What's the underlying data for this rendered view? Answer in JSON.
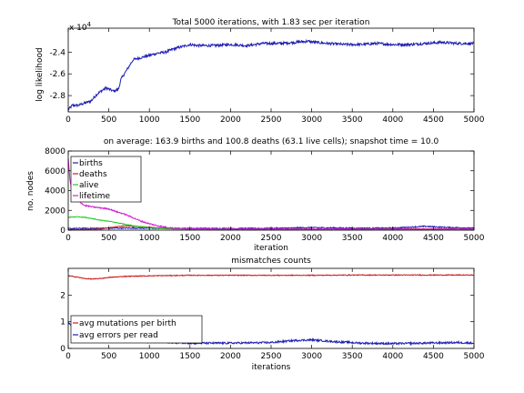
{
  "figure": {
    "background": "#ffffff"
  },
  "chart_data": [
    {
      "id": "loglik",
      "type": "line",
      "title": "Total 5000 iterations, with 1.83 sec per iteration",
      "xlabel": "",
      "ylabel": "log likelihood",
      "exponent_label": "x 10",
      "exponent_power": "4",
      "xlim": [
        0,
        5000
      ],
      "ylim": [
        -2.95,
        -2.18
      ],
      "x_ticks": [
        0,
        500,
        1000,
        1500,
        2000,
        2500,
        3000,
        3500,
        4000,
        4500,
        5000
      ],
      "y_ticks": [
        -2.8,
        -2.6,
        -2.4
      ],
      "y_tick_labels": [
        "-2.8",
        "-2.6",
        "-2.4"
      ],
      "series": [
        {
          "color": "#1f1fb4",
          "x": [
            0,
            50,
            120,
            200,
            280,
            350,
            420,
            470,
            500,
            560,
            620,
            650,
            700,
            750,
            800,
            900,
            1000,
            1100,
            1200,
            1300,
            1400,
            1500,
            1600,
            1800,
            2000,
            2200,
            2400,
            2600,
            2800,
            2950,
            3050,
            3200,
            3400,
            3600,
            3800,
            4000,
            4200,
            4400,
            4600,
            4800,
            5000
          ],
          "y": [
            -2.93,
            -2.89,
            -2.89,
            -2.87,
            -2.85,
            -2.79,
            -2.75,
            -2.73,
            -2.74,
            -2.76,
            -2.74,
            -2.65,
            -2.59,
            -2.53,
            -2.47,
            -2.45,
            -2.43,
            -2.41,
            -2.4,
            -2.37,
            -2.35,
            -2.33,
            -2.34,
            -2.34,
            -2.33,
            -2.34,
            -2.32,
            -2.32,
            -2.31,
            -2.3,
            -2.31,
            -2.32,
            -2.33,
            -2.33,
            -2.32,
            -2.33,
            -2.33,
            -2.32,
            -2.31,
            -2.32,
            -2.32
          ]
        }
      ]
    },
    {
      "id": "nodes",
      "type": "line",
      "title": "on average: 163.9 births and 100.8 deaths (63.1 live cells); snapshot time = 10.0",
      "xlabel": "iteration",
      "ylabel": "no. nodes",
      "xlim": [
        0,
        5000
      ],
      "ylim": [
        0,
        8000
      ],
      "x_ticks": [
        0,
        500,
        1000,
        1500,
        2000,
        2500,
        3000,
        3500,
        4000,
        4500,
        5000
      ],
      "y_ticks": [
        0,
        2000,
        4000,
        6000,
        8000
      ],
      "y_tick_labels": [
        "0",
        "2000",
        "4000",
        "6000",
        "8000"
      ],
      "legend": {
        "placement": "top-left",
        "entries": [
          "births",
          "deaths",
          "alive",
          "lifetime"
        ]
      },
      "series": [
        {
          "name": "births",
          "color": "#1f1fb4",
          "x": [
            0,
            200,
            500,
            800,
            1000,
            1300,
            1500,
            2000,
            2500,
            3000,
            3500,
            4000,
            4400,
            4600,
            5000
          ],
          "y": [
            150,
            180,
            200,
            220,
            200,
            170,
            180,
            170,
            180,
            260,
            200,
            210,
            380,
            300,
            200
          ]
        },
        {
          "name": "deaths",
          "color": "#c81e1e",
          "x": [
            0,
            200,
            400,
            500,
            700,
            900,
            1100,
            1300,
            1500,
            2000,
            2500,
            3000,
            3500,
            4000,
            4400,
            5000
          ],
          "y": [
            50,
            60,
            100,
            250,
            450,
            350,
            250,
            170,
            110,
            100,
            100,
            100,
            100,
            110,
            130,
            110
          ]
        },
        {
          "name": "alive",
          "color": "#1ec81e",
          "x": [
            0,
            100,
            200,
            300,
            400,
            500,
            600,
            700,
            800,
            900,
            1000,
            1200,
            1400,
            1600,
            2000,
            3000,
            4000,
            5000
          ],
          "y": [
            1300,
            1350,
            1300,
            1150,
            1000,
            900,
            750,
            600,
            450,
            350,
            250,
            150,
            100,
            80,
            60,
            60,
            60,
            60
          ]
        },
        {
          "name": "lifetime",
          "color": "#d21ed2",
          "x": [
            0,
            20,
            50,
            100,
            150,
            200,
            300,
            400,
            500,
            600,
            700,
            800,
            900,
            1000,
            1100,
            1200,
            1300,
            1500,
            2000,
            3000,
            4000,
            5000
          ],
          "y": [
            7200,
            5200,
            3600,
            3200,
            2800,
            2500,
            2350,
            2250,
            2150,
            1850,
            1600,
            1250,
            900,
            650,
            450,
            300,
            200,
            120,
            100,
            90,
            90,
            90
          ]
        }
      ]
    },
    {
      "id": "mismatch",
      "type": "line",
      "title": "mismatches counts",
      "xlabel": "iterations",
      "ylabel": "",
      "xlim": [
        0,
        5000
      ],
      "ylim": [
        0,
        3
      ],
      "x_ticks": [
        0,
        500,
        1000,
        1500,
        2000,
        2500,
        3000,
        3500,
        4000,
        4500,
        5000
      ],
      "y_ticks": [
        0,
        1,
        2
      ],
      "y_tick_labels": [
        "0",
        "1",
        "2"
      ],
      "legend": {
        "placement": "bottom-left",
        "entries": [
          "avg mutations per birth",
          "avg errors per read"
        ]
      },
      "series": [
        {
          "name": "avg mutations per birth",
          "color": "#c81e1e",
          "x": [
            0,
            100,
            200,
            300,
            400,
            500,
            700,
            1000,
            1500,
            2000,
            2500,
            3000,
            3500,
            4000,
            4500,
            5000
          ],
          "y": [
            2.72,
            2.68,
            2.62,
            2.6,
            2.62,
            2.66,
            2.7,
            2.72,
            2.74,
            2.74,
            2.74,
            2.74,
            2.75,
            2.75,
            2.75,
            2.75
          ]
        },
        {
          "name": "avg errors per read",
          "color": "#1f1fb4",
          "x": [
            0,
            100,
            250,
            400,
            500,
            700,
            1000,
            1500,
            2000,
            2500,
            2800,
            3000,
            3300,
            3600,
            4000,
            4400,
            4800,
            5000
          ],
          "y": [
            0.95,
            0.75,
            0.6,
            0.5,
            0.42,
            0.33,
            0.25,
            0.2,
            0.2,
            0.22,
            0.3,
            0.32,
            0.25,
            0.2,
            0.18,
            0.2,
            0.22,
            0.2
          ]
        }
      ]
    }
  ]
}
